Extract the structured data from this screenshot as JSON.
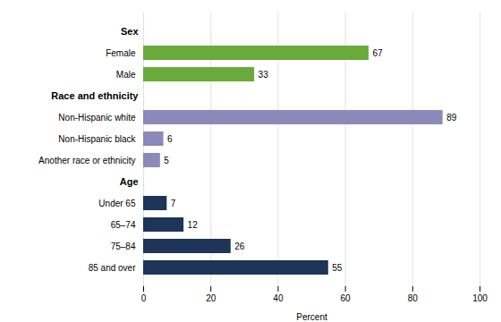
{
  "chart_data": {
    "type": "bar",
    "orientation": "horizontal",
    "groups": [
      {
        "label": "Sex",
        "color": "#6aaa3a",
        "categories": [
          "Female",
          "Male"
        ],
        "values": [
          67,
          33
        ]
      },
      {
        "label": "Race and ethnicity",
        "color": "#8b89b8",
        "categories": [
          "Non-Hispanic white",
          "Non-Hispanic black",
          "Another race or ethnicity"
        ],
        "values": [
          89,
          6,
          5
        ]
      },
      {
        "label": "Age",
        "color": "#1c3558",
        "categories": [
          "Under 65",
          "65–74",
          "75–84",
          "85 and over"
        ],
        "values": [
          7,
          12,
          26,
          55
        ]
      }
    ],
    "xlabel": "Percent",
    "xlim": [
      0,
      100
    ],
    "xticks": [
      0,
      20,
      40,
      60,
      80,
      100
    ],
    "grid": true,
    "data_labels": true
  }
}
